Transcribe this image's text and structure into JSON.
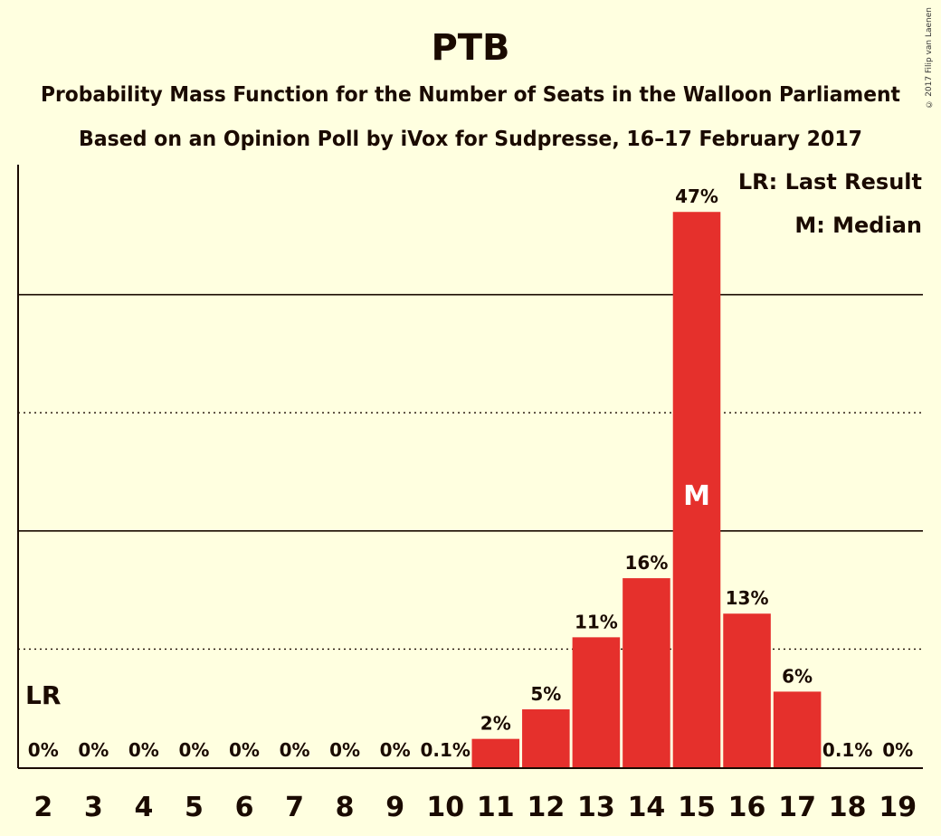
{
  "copyright": "© 2017 Filip van Laenen",
  "chart_data": {
    "type": "bar",
    "title": "PTB",
    "subtitle_line1": "Probability Mass Function for the Number of Seats in the Walloon Parliament",
    "subtitle_line2": "Based on an Opinion Poll by iVox for Sudpresse, 16–17 February 2017",
    "categories": [
      "2",
      "3",
      "4",
      "5",
      "6",
      "7",
      "8",
      "9",
      "10",
      "11",
      "12",
      "13",
      "14",
      "15",
      "16",
      "17",
      "18",
      "19"
    ],
    "values": [
      0,
      0,
      0,
      0,
      0,
      0,
      0,
      0,
      0.1,
      2.4,
      4.9,
      11,
      16,
      47,
      13,
      6.4,
      0.1,
      0
    ],
    "value_labels": [
      "0%",
      "0%",
      "0%",
      "0%",
      "0%",
      "0%",
      "0%",
      "0%",
      "0.1%",
      "2%",
      "5%",
      "11%",
      "16%",
      "47%",
      "13%",
      "6%",
      "0.1%",
      "0%"
    ],
    "ylim": [
      0,
      51
    ],
    "gridlines": [
      {
        "value": 10,
        "style": "dotted"
      },
      {
        "value": 20,
        "style": "solid"
      },
      {
        "value": 30,
        "style": "dotted"
      },
      {
        "value": 40,
        "style": "solid"
      }
    ],
    "last_result": {
      "category": "2",
      "label": "LR"
    },
    "median": {
      "category": "15",
      "label": "M"
    },
    "legend": {
      "position": "top-right",
      "entries": [
        "LR: Last Result",
        "M: Median"
      ]
    },
    "colors": {
      "bar": "#e5302c",
      "background": "#ffffe0",
      "text": "#1a0a00",
      "median_label": "#ffffff"
    }
  }
}
